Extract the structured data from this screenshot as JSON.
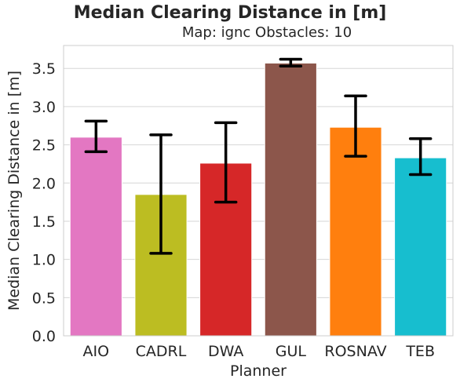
{
  "chart_data": {
    "type": "bar",
    "title": "Median Clearing Distance in [m]",
    "subtitle": "Map: ignc Obstacles: 10",
    "xlabel": "Planner",
    "ylabel": "Median Clearing Distance in [m]",
    "ylim": [
      0,
      3.8
    ],
    "yticks": [
      "0.0",
      "0.5",
      "1.0",
      "1.5",
      "2.0",
      "2.5",
      "3.0",
      "3.5"
    ],
    "grid": true,
    "categories": [
      "AIO",
      "CADRL",
      "DWA",
      "GUL",
      "ROSNAV",
      "TEB"
    ],
    "values": [
      2.6,
      1.85,
      2.26,
      3.57,
      2.73,
      2.33
    ],
    "error_low": [
      2.41,
      1.08,
      1.75,
      3.53,
      2.35,
      2.11
    ],
    "error_high": [
      2.81,
      2.63,
      2.79,
      3.62,
      3.14,
      2.58
    ],
    "colors": [
      "#e377c2",
      "#bcbd22",
      "#d62728",
      "#8c564b",
      "#ff7f0e",
      "#17becf"
    ]
  }
}
